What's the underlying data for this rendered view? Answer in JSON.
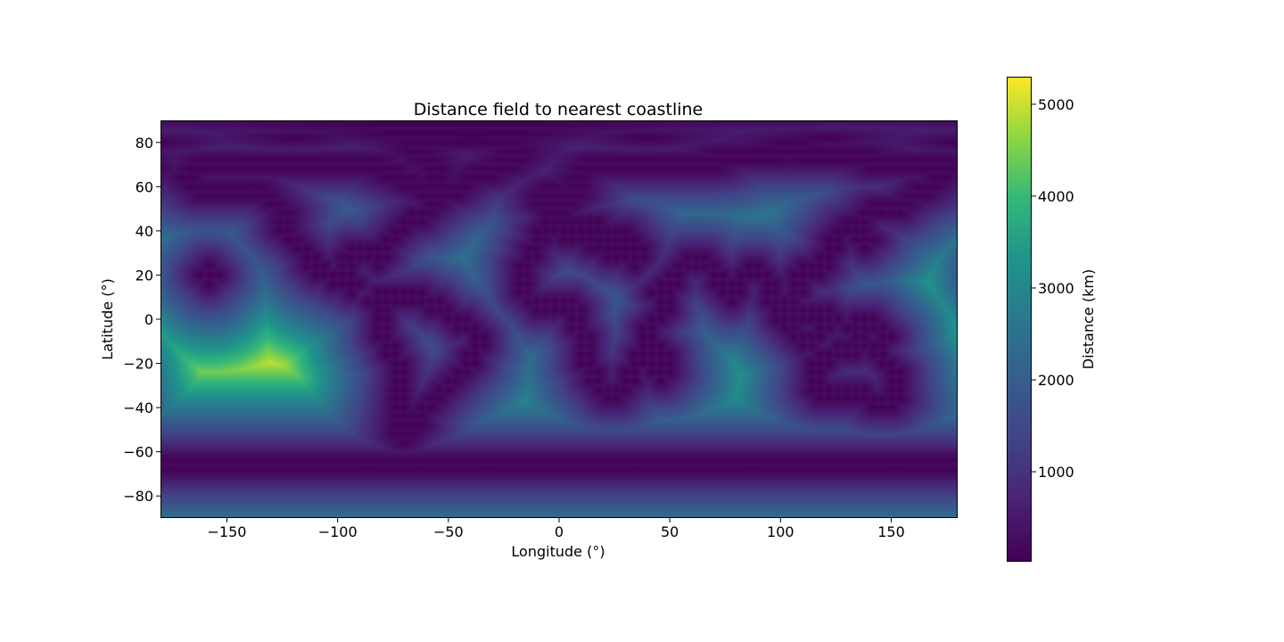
{
  "chart_data": {
    "type": "heatmap",
    "title": "Distance field to nearest coastline",
    "xlabel": "Longitude (°)",
    "ylabel": "Latitude (°)",
    "xlim": [
      -180,
      180
    ],
    "ylim": [
      -90,
      90
    ],
    "xticks": [
      -150,
      -100,
      -50,
      0,
      50,
      100,
      150
    ],
    "xtick_labels": [
      "−150",
      "−100",
      "−50",
      "0",
      "50",
      "100",
      "150"
    ],
    "yticks": [
      80,
      60,
      40,
      20,
      0,
      -20,
      -40,
      -60,
      -80
    ],
    "ytick_labels": [
      "80",
      "60",
      "40",
      "20",
      "0",
      "−20",
      "−40",
      "−60",
      "−80"
    ],
    "grid": false,
    "colormap": "viridis",
    "colorbar": {
      "label": "Distance (km)",
      "range": [
        20,
        5300
      ],
      "ticks": [
        1000,
        2000,
        3000,
        4000,
        5000
      ],
      "tick_labels": [
        "1000",
        "2000",
        "3000",
        "4000",
        "5000"
      ]
    },
    "field_peaks": [
      {
        "lon": -128,
        "lat": -23,
        "value": 5200
      },
      {
        "lon": -45,
        "lat": 27,
        "value": 3000
      },
      {
        "lon": -18,
        "lat": -40,
        "value": 3200
      },
      {
        "lon": 80,
        "lat": -28,
        "value": 3300
      },
      {
        "lon": 172,
        "lat": 20,
        "value": 3100
      },
      {
        "lon": -175,
        "lat": -40,
        "value": 2600
      },
      {
        "lon": -100,
        "lat": -10,
        "value": 3000
      },
      {
        "lon": 15,
        "lat": 15,
        "value": 1800
      },
      {
        "lon": 90,
        "lat": 40,
        "value": 1500
      },
      {
        "lon": 0,
        "lat": -85,
        "value": 1500
      }
    ]
  }
}
